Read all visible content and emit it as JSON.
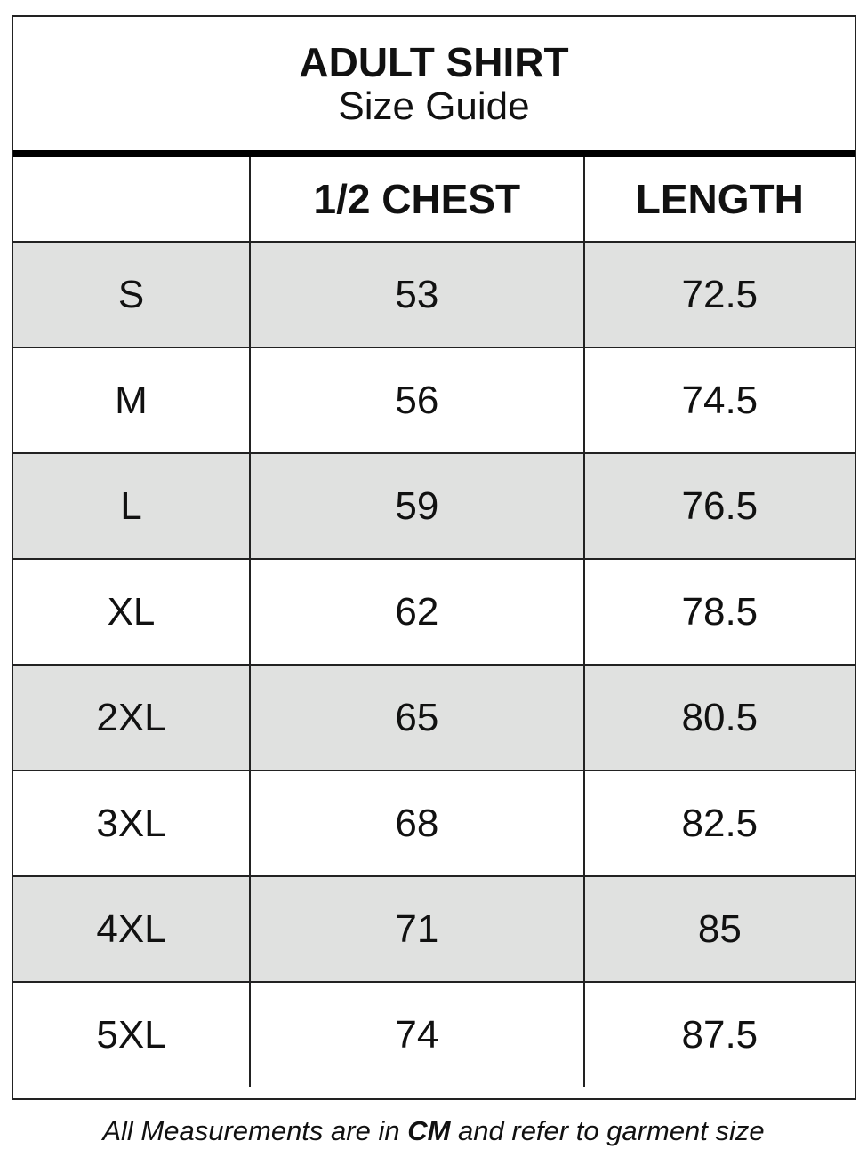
{
  "title": "ADULT SHIRT",
  "subtitle": "Size Guide",
  "columns": [
    "",
    "1/2 CHEST",
    "LENGTH"
  ],
  "rows": [
    [
      "S",
      "53",
      "72.5"
    ],
    [
      "M",
      "56",
      "74.5"
    ],
    [
      "L",
      "59",
      "76.5"
    ],
    [
      "XL",
      "62",
      "78.5"
    ],
    [
      "2XL",
      "65",
      "80.5"
    ],
    [
      "3XL",
      "68",
      "82.5"
    ],
    [
      "4XL",
      "71",
      "85"
    ],
    [
      "5XL",
      "74",
      "87.5"
    ]
  ],
  "footer": {
    "pre": "All Measurements are in ",
    "unit": "CM",
    "post": " and refer to garment size"
  },
  "colors": {
    "stripe": "#e0e1e0",
    "border": "#222222"
  }
}
